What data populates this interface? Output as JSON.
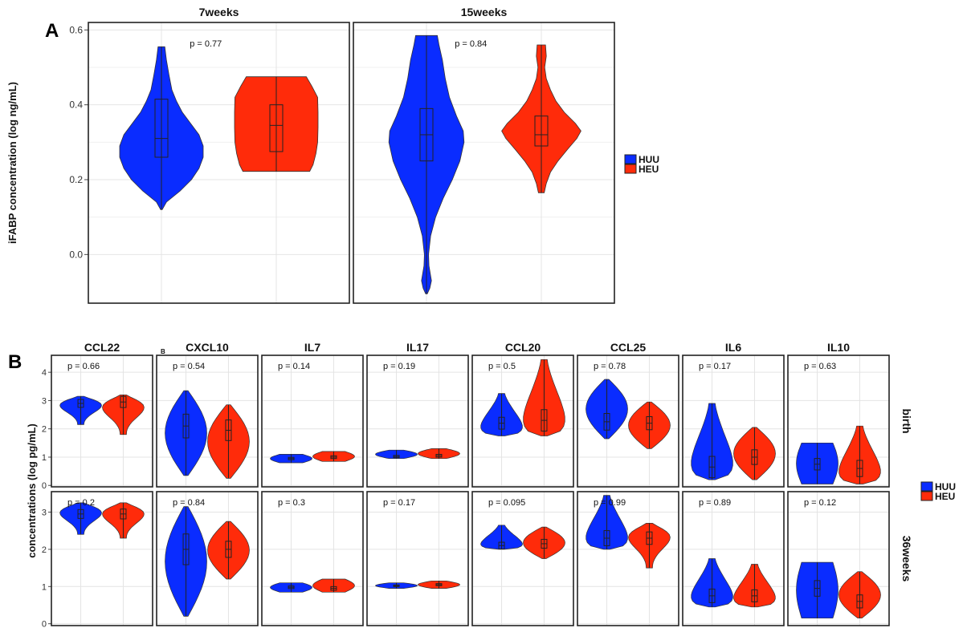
{
  "panel_labels": {
    "a": "A",
    "b": "B",
    "b_small": "B"
  },
  "colors": {
    "HUU": "#0a2cff",
    "HEU": "#ff2b0a"
  },
  "chart_data": [
    {
      "type": "violin",
      "ylabel": "iFABP concentration (log ng/mL)",
      "ylim": [
        -0.13,
        0.62
      ],
      "yticks": [
        0.0,
        0.2,
        0.4,
        0.6
      ],
      "ytick_labels": [
        "0.0",
        "0.2",
        "0.4",
        "0.6"
      ],
      "legend": [
        "HUU",
        "HEU"
      ],
      "facets": [
        {
          "title": "7weeks",
          "p": "p = 0.77",
          "groups": [
            {
              "name": "HUU",
              "min": 0.12,
              "q1": 0.26,
              "median": 0.31,
              "q3": 0.415,
              "max": 0.555,
              "profile": [
                [
                  0.12,
                  0.02
                ],
                [
                  0.14,
                  0.12
                ],
                [
                  0.17,
                  0.45
                ],
                [
                  0.2,
                  0.72
                ],
                [
                  0.23,
                  0.9
                ],
                [
                  0.26,
                  1.0
                ],
                [
                  0.29,
                  1.0
                ],
                [
                  0.32,
                  0.9
                ],
                [
                  0.35,
                  0.7
                ],
                [
                  0.38,
                  0.5
                ],
                [
                  0.41,
                  0.36
                ],
                [
                  0.44,
                  0.25
                ],
                [
                  0.48,
                  0.18
                ],
                [
                  0.52,
                  0.12
                ],
                [
                  0.555,
                  0.08
                ]
              ]
            },
            {
              "name": "HEU",
              "min": 0.222,
              "q1": 0.275,
              "median": 0.345,
              "q3": 0.4,
              "max": 0.475,
              "profile": [
                [
                  0.222,
                  0.8
                ],
                [
                  0.24,
                  0.88
                ],
                [
                  0.27,
                  0.95
                ],
                [
                  0.3,
                  0.99
                ],
                [
                  0.34,
                  1.0
                ],
                [
                  0.38,
                  1.0
                ],
                [
                  0.42,
                  0.99
                ],
                [
                  0.45,
                  0.85
                ],
                [
                  0.475,
                  0.72
                ]
              ]
            }
          ]
        },
        {
          "title": "15weeks",
          "p": "p = 0.84",
          "groups": [
            {
              "name": "HUU",
              "min": -0.105,
              "q1": 0.25,
              "median": 0.32,
              "q3": 0.39,
              "max": 0.585,
              "profile": [
                [
                  -0.105,
                  0.02
                ],
                [
                  -0.09,
                  0.08
                ],
                [
                  -0.07,
                  0.12
                ],
                [
                  -0.03,
                  0.06
                ],
                [
                  0.0,
                  0.05
                ],
                [
                  0.05,
                  0.1
                ],
                [
                  0.1,
                  0.22
                ],
                [
                  0.15,
                  0.4
                ],
                [
                  0.2,
                  0.62
                ],
                [
                  0.25,
                  0.8
                ],
                [
                  0.3,
                  0.9
                ],
                [
                  0.33,
                  0.88
                ],
                [
                  0.37,
                  0.72
                ],
                [
                  0.42,
                  0.55
                ],
                [
                  0.47,
                  0.45
                ],
                [
                  0.52,
                  0.38
                ],
                [
                  0.56,
                  0.3
                ],
                [
                  0.585,
                  0.26
                ]
              ]
            },
            {
              "name": "HEU",
              "min": 0.165,
              "q1": 0.29,
              "median": 0.32,
              "q3": 0.37,
              "max": 0.56,
              "profile": [
                [
                  0.165,
                  0.07
                ],
                [
                  0.19,
                  0.12
                ],
                [
                  0.22,
                  0.22
                ],
                [
                  0.25,
                  0.4
                ],
                [
                  0.28,
                  0.62
                ],
                [
                  0.31,
                  0.85
                ],
                [
                  0.33,
                  0.95
                ],
                [
                  0.35,
                  0.82
                ],
                [
                  0.38,
                  0.55
                ],
                [
                  0.41,
                  0.35
                ],
                [
                  0.44,
                  0.22
                ],
                [
                  0.47,
                  0.12
                ],
                [
                  0.5,
                  0.08
                ],
                [
                  0.53,
                  0.12
                ],
                [
                  0.56,
                  0.1
                ]
              ]
            }
          ]
        }
      ]
    },
    {
      "type": "violin",
      "ylabel": "concentrations (log pg/mL)",
      "legend": [
        "HUU",
        "HEU"
      ],
      "rows": [
        {
          "label": "birth",
          "ylim": [
            -0.05,
            4.6
          ],
          "yticks": [
            0,
            1,
            2,
            3,
            4
          ],
          "ytick_labels": [
            "0",
            "1",
            "2",
            "3",
            "4"
          ]
        },
        {
          "label": "36weeks",
          "ylim": [
            -0.05,
            3.55
          ],
          "yticks": [
            0,
            1,
            2,
            3
          ],
          "ytick_labels": [
            "0",
            "1",
            "2",
            "3"
          ]
        }
      ],
      "columns": [
        "CCL22",
        "CXCL10",
        "IL7",
        "IL17",
        "CCL20",
        "CCL25",
        "IL6",
        "IL10"
      ],
      "p_values": [
        [
          "p = 0.66",
          "p = 0.54",
          "p = 0.14",
          "p = 0.19",
          "p = 0.5",
          "p = 0.78",
          "p = 0.17",
          "p = 0.63"
        ],
        [
          "p = 0.2",
          "p = 0.84",
          "p = 0.3",
          "p = 0.17",
          "p = 0.095",
          "p = 0.99",
          "p = 0.89",
          "p = 0.12"
        ]
      ],
      "violins": [
        [
          [
            {
              "min": 2.15,
              "max": 3.15,
              "median": 2.9,
              "shape": "top"
            },
            {
              "min": 1.8,
              "max": 3.2,
              "median": 2.95,
              "shape": "top"
            }
          ],
          [
            {
              "min": 0.35,
              "max": 3.35,
              "median": 2.1,
              "shape": "mid"
            },
            {
              "min": 0.25,
              "max": 2.85,
              "median": 1.95,
              "shape": "mid"
            }
          ],
          [
            {
              "min": 0.8,
              "max": 1.1,
              "median": 0.95,
              "shape": "flat"
            },
            {
              "min": 0.85,
              "max": 1.2,
              "median": 1.0,
              "shape": "flat"
            }
          ],
          [
            {
              "min": 0.95,
              "max": 1.25,
              "median": 1.02,
              "shape": "thin"
            },
            {
              "min": 0.95,
              "max": 1.3,
              "median": 1.05,
              "shape": "thin"
            }
          ],
          [
            {
              "min": 1.75,
              "max": 3.25,
              "median": 2.2,
              "shape": "bottom"
            },
            {
              "min": 1.75,
              "max": 4.45,
              "median": 2.3,
              "shape": "bottom"
            }
          ],
          [
            {
              "min": 1.65,
              "max": 3.75,
              "median": 2.25,
              "shape": "mid"
            },
            {
              "min": 1.3,
              "max": 2.95,
              "median": 2.2,
              "shape": "mid"
            }
          ],
          [
            {
              "min": 0.2,
              "max": 2.9,
              "median": 0.65,
              "shape": "bottom"
            },
            {
              "min": 0.2,
              "max": 2.05,
              "median": 1.0,
              "shape": "mid"
            }
          ],
          [
            {
              "min": 0.05,
              "max": 1.5,
              "median": 0.75,
              "shape": "wide"
            },
            {
              "min": 0.05,
              "max": 2.1,
              "median": 0.6,
              "shape": "bottom"
            }
          ]
        ],
        [
          [
            {
              "min": 2.4,
              "max": 3.25,
              "median": 2.95,
              "shape": "top"
            },
            {
              "min": 2.3,
              "max": 3.25,
              "median": 2.95,
              "shape": "top"
            }
          ],
          [
            {
              "min": 0.2,
              "max": 3.15,
              "median": 2.0,
              "shape": "mid"
            },
            {
              "min": 1.2,
              "max": 2.75,
              "median": 2.0,
              "shape": "mid"
            }
          ],
          [
            {
              "min": 0.85,
              "max": 1.1,
              "median": 0.98,
              "shape": "flat"
            },
            {
              "min": 0.85,
              "max": 1.2,
              "median": 0.95,
              "shape": "flat"
            }
          ],
          [
            {
              "min": 0.95,
              "max": 1.1,
              "median": 1.02,
              "shape": "thin"
            },
            {
              "min": 0.95,
              "max": 1.15,
              "median": 1.05,
              "shape": "thin"
            }
          ],
          [
            {
              "min": 2.0,
              "max": 2.65,
              "median": 2.1,
              "shape": "bottom"
            },
            {
              "min": 1.75,
              "max": 2.6,
              "median": 2.15,
              "shape": "mid"
            }
          ],
          [
            {
              "min": 2.0,
              "max": 3.45,
              "median": 2.3,
              "shape": "bottom"
            },
            {
              "min": 1.5,
              "max": 2.7,
              "median": 2.3,
              "shape": "top"
            }
          ],
          [
            {
              "min": 0.45,
              "max": 1.75,
              "median": 0.75,
              "shape": "bottom"
            },
            {
              "min": 0.45,
              "max": 1.6,
              "median": 0.75,
              "shape": "bottom"
            }
          ],
          [
            {
              "min": 0.15,
              "max": 1.65,
              "median": 0.95,
              "shape": "wide"
            },
            {
              "min": 0.15,
              "max": 1.4,
              "median": 0.6,
              "shape": "mid"
            }
          ]
        ]
      ]
    }
  ]
}
